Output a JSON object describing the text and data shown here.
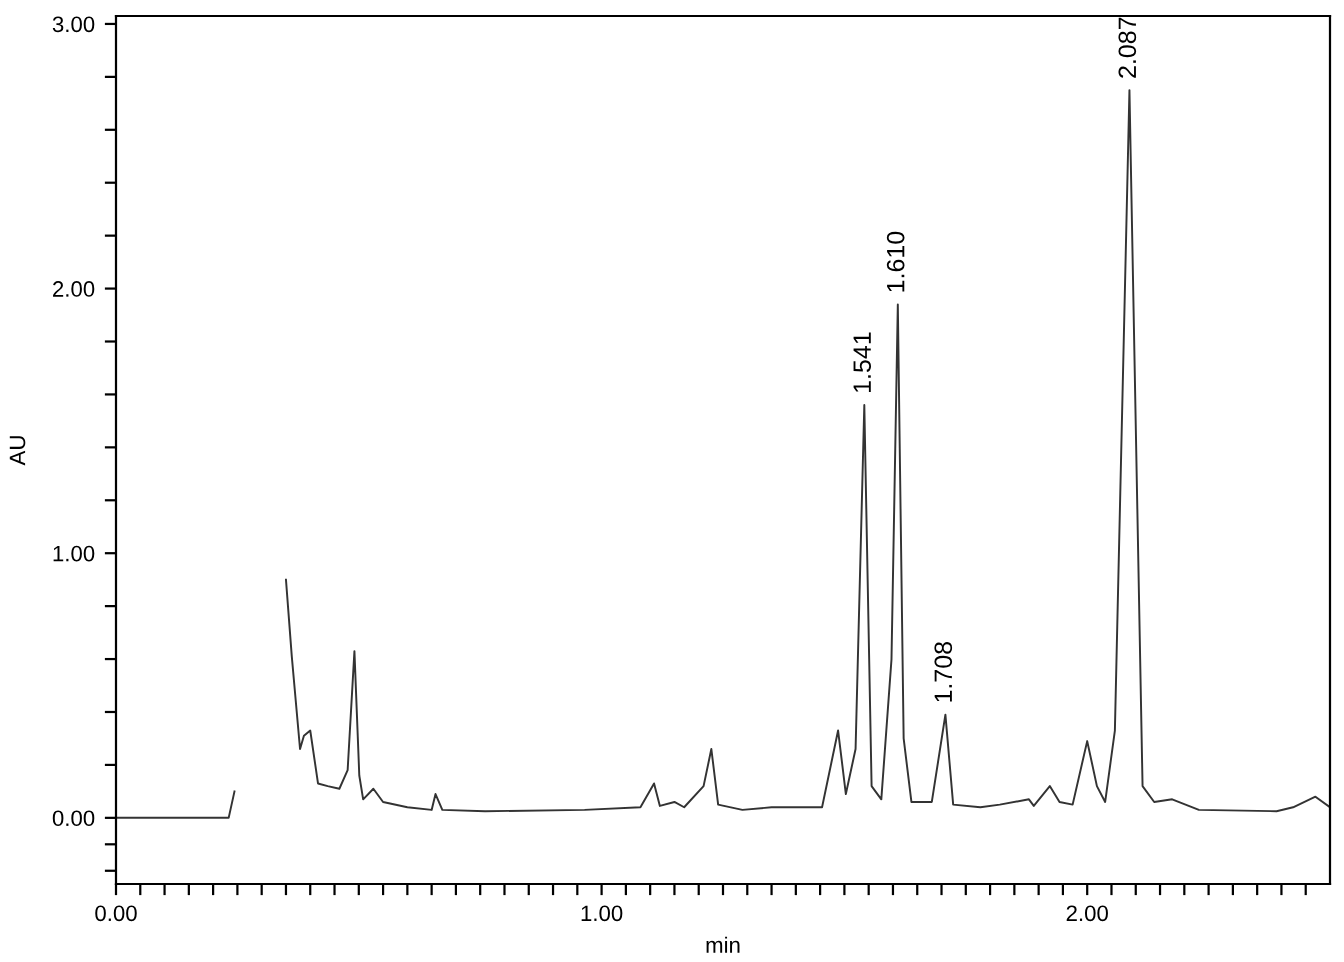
{
  "chart_data": {
    "type": "line",
    "xlabel": "min",
    "ylabel": "AU",
    "xlim": [
      0,
      2.5
    ],
    "ylim": [
      -0.25,
      3.03
    ],
    "xticks": [
      {
        "value": 0,
        "label": "0.00"
      },
      {
        "value": 0.05,
        "label": null
      },
      {
        "value": 0.1,
        "label": null
      },
      {
        "value": 0.15,
        "label": null
      },
      {
        "value": 0.2,
        "label": null
      },
      {
        "value": 0.25,
        "label": null
      },
      {
        "value": 0.3,
        "label": null
      },
      {
        "value": 0.35,
        "label": null
      },
      {
        "value": 0.4,
        "label": null
      },
      {
        "value": 0.45,
        "label": null
      },
      {
        "value": 0.5,
        "label": null
      },
      {
        "value": 0.55,
        "label": null
      },
      {
        "value": 0.6,
        "label": null
      },
      {
        "value": 0.65,
        "label": null
      },
      {
        "value": 0.7,
        "label": null
      },
      {
        "value": 0.75,
        "label": null
      },
      {
        "value": 0.8,
        "label": null
      },
      {
        "value": 0.85,
        "label": null
      },
      {
        "value": 0.9,
        "label": null
      },
      {
        "value": 0.95,
        "label": null
      },
      {
        "value": 1,
        "label": "1.00"
      },
      {
        "value": 1.05,
        "label": null
      },
      {
        "value": 1.1,
        "label": null
      },
      {
        "value": 1.15,
        "label": null
      },
      {
        "value": 1.2,
        "label": null
      },
      {
        "value": 1.25,
        "label": null
      },
      {
        "value": 1.3,
        "label": null
      },
      {
        "value": 1.35,
        "label": null
      },
      {
        "value": 1.4,
        "label": null
      },
      {
        "value": 1.45,
        "label": null
      },
      {
        "value": 1.5,
        "label": null
      },
      {
        "value": 1.55,
        "label": null
      },
      {
        "value": 1.6,
        "label": null
      },
      {
        "value": 1.65,
        "label": null
      },
      {
        "value": 1.7,
        "label": null
      },
      {
        "value": 1.75,
        "label": null
      },
      {
        "value": 1.8,
        "label": null
      },
      {
        "value": 1.85,
        "label": null
      },
      {
        "value": 1.9,
        "label": null
      },
      {
        "value": 1.95,
        "label": null
      },
      {
        "value": 2,
        "label": "2.00"
      },
      {
        "value": 2.05,
        "label": null
      },
      {
        "value": 2.1,
        "label": null
      },
      {
        "value": 2.15,
        "label": null
      },
      {
        "value": 2.2,
        "label": null
      },
      {
        "value": 2.25,
        "label": null
      },
      {
        "value": 2.3,
        "label": null
      },
      {
        "value": 2.35,
        "label": null
      },
      {
        "value": 2.4,
        "label": null
      },
      {
        "value": 2.45,
        "label": null
      }
    ],
    "yticks": [
      {
        "value": -0.2,
        "label": null
      },
      {
        "value": -0.1,
        "label": null
      },
      {
        "value": 0,
        "label": "0.00"
      },
      {
        "value": 0.2,
        "label": null
      },
      {
        "value": 0.4,
        "label": null
      },
      {
        "value": 0.6,
        "label": null
      },
      {
        "value": 0.8,
        "label": null
      },
      {
        "value": 1,
        "label": "1.00"
      },
      {
        "value": 1.2,
        "label": null
      },
      {
        "value": 1.4,
        "label": null
      },
      {
        "value": 1.6,
        "label": null
      },
      {
        "value": 1.8,
        "label": null
      },
      {
        "value": 2,
        "label": "2.00"
      },
      {
        "value": 2.2,
        "label": null
      },
      {
        "value": 2.4,
        "label": null
      },
      {
        "value": 2.6,
        "label": null
      },
      {
        "value": 2.8,
        "label": null
      },
      {
        "value": 3,
        "label": "3.00"
      }
    ],
    "grid": false,
    "marker": "none",
    "line_style": "solid",
    "series": [
      {
        "color": "#333333",
        "x": [
          0,
          0.232,
          0.244,
          0.26,
          0.342,
          0.35,
          0.362,
          0.379,
          0.387,
          0.4,
          0.416,
          0.436,
          0.46,
          0.477,
          0.491,
          0.501,
          0.509,
          0.53,
          0.55,
          0.6,
          0.65,
          0.658,
          0.672,
          0.76,
          0.965,
          1.08,
          1.108,
          1.12,
          1.15,
          1.17,
          1.21,
          1.226,
          1.24,
          1.29,
          1.35,
          1.454,
          1.487,
          1.503,
          1.523,
          1.541,
          1.556,
          1.576,
          1.597,
          1.61,
          1.622,
          1.638,
          1.68,
          1.708,
          1.724,
          1.78,
          1.82,
          1.88,
          1.89,
          1.923,
          1.943,
          1.97,
          2.0,
          2.02,
          2.037,
          2.057,
          2.087,
          2.114,
          2.138,
          2.175,
          2.23,
          2.39,
          2.424,
          2.47,
          2.5
        ],
        "values": [
          0,
          0,
          0.1,
          null,
          null,
          0.9,
          0.61,
          0.26,
          0.31,
          0.33,
          0.13,
          0.12,
          0.11,
          0.18,
          0.63,
          0.16,
          0.07,
          0.11,
          0.06,
          0.04,
          0.03,
          0.09,
          0.03,
          0.025,
          0.03,
          0.04,
          0.13,
          0.045,
          0.06,
          0.04,
          0.12,
          0.26,
          0.05,
          0.03,
          0.04,
          0.04,
          0.33,
          0.09,
          0.26,
          1.56,
          0.12,
          0.07,
          0.6,
          1.94,
          0.3,
          0.06,
          0.06,
          0.39,
          0.05,
          0.04,
          0.05,
          0.07,
          0.045,
          0.12,
          0.06,
          0.05,
          0.29,
          0.12,
          0.06,
          0.33,
          2.75,
          0.12,
          0.06,
          0.07,
          0.03,
          0.025,
          0.04,
          0.08,
          0.04
        ]
      }
    ],
    "annotations": [
      {
        "text": "1.541",
        "x": 1.541,
        "y": 1.56
      },
      {
        "text": "1.610",
        "x": 1.61,
        "y": 1.94
      },
      {
        "text": "1.708",
        "x": 1.708,
        "y": 0.39
      },
      {
        "text": "2.087",
        "x": 2.087,
        "y": 2.75
      }
    ]
  }
}
